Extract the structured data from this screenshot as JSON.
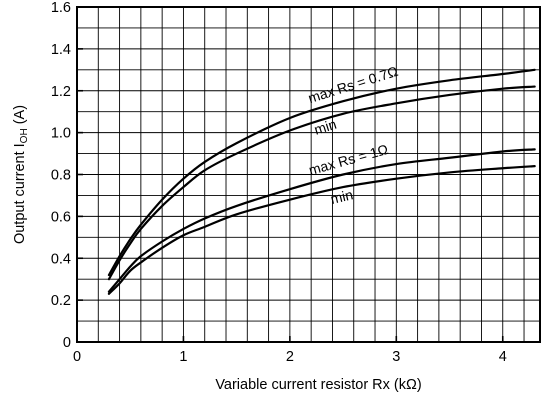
{
  "chart_data": {
    "type": "line",
    "title": "",
    "xlabel": "Variable current resistor Rx (kΩ)",
    "ylabel": "Output current I",
    "ylabel_sub": "OH",
    "ylabel_unit": " (A)",
    "xlim": [
      0,
      4.35
    ],
    "ylim": [
      0,
      1.6
    ],
    "x_ticks": [
      {
        "value": 0,
        "label": "0"
      },
      {
        "value": 1,
        "label": "1"
      },
      {
        "value": 2,
        "label": "2"
      },
      {
        "value": 3,
        "label": "3"
      },
      {
        "value": 4,
        "label": "4"
      }
    ],
    "y_ticks": [
      {
        "value": 0,
        "label": "0"
      },
      {
        "value": 0.2,
        "label": "0.2"
      },
      {
        "value": 0.4,
        "label": "0.4"
      },
      {
        "value": 0.6,
        "label": "0.6"
      },
      {
        "value": 0.8,
        "label": "0.8"
      },
      {
        "value": 1.0,
        "label": "1.0"
      },
      {
        "value": 1.2,
        "label": "1.2"
      },
      {
        "value": 1.4,
        "label": "1.4"
      },
      {
        "value": 1.6,
        "label": "1.6"
      }
    ],
    "grid": true,
    "minor_x_step": 0.2,
    "minor_y_step": 0.1,
    "series": [
      {
        "name": "max Rs = 0.7Ω",
        "x": [
          0.3,
          0.4,
          0.5,
          0.6,
          0.8,
          1.0,
          1.2,
          1.5,
          2.0,
          2.5,
          3.0,
          3.5,
          4.0,
          4.3
        ],
        "y": [
          0.32,
          0.41,
          0.49,
          0.56,
          0.68,
          0.78,
          0.86,
          0.95,
          1.07,
          1.15,
          1.21,
          1.25,
          1.28,
          1.3
        ]
      },
      {
        "name": "min",
        "x": [
          0.3,
          0.4,
          0.5,
          0.6,
          0.8,
          1.0,
          1.2,
          1.5,
          2.0,
          2.5,
          3.0,
          3.5,
          4.0,
          4.3
        ],
        "y": [
          0.3,
          0.39,
          0.47,
          0.54,
          0.65,
          0.74,
          0.82,
          0.9,
          1.01,
          1.09,
          1.14,
          1.18,
          1.21,
          1.22
        ]
      },
      {
        "name": "max Rs = 1Ω",
        "x": [
          0.3,
          0.4,
          0.5,
          0.6,
          0.8,
          1.0,
          1.2,
          1.5,
          2.0,
          2.5,
          3.0,
          3.5,
          4.0,
          4.3
        ],
        "y": [
          0.24,
          0.3,
          0.36,
          0.41,
          0.48,
          0.54,
          0.59,
          0.65,
          0.73,
          0.8,
          0.85,
          0.88,
          0.91,
          0.92
        ]
      },
      {
        "name": "min",
        "x": [
          0.3,
          0.4,
          0.5,
          0.6,
          0.8,
          1.0,
          1.2,
          1.5,
          2.0,
          2.5,
          3.0,
          3.5,
          4.0,
          4.3
        ],
        "y": [
          0.23,
          0.28,
          0.34,
          0.38,
          0.45,
          0.51,
          0.55,
          0.61,
          0.68,
          0.74,
          0.78,
          0.81,
          0.83,
          0.84
        ]
      }
    ]
  }
}
